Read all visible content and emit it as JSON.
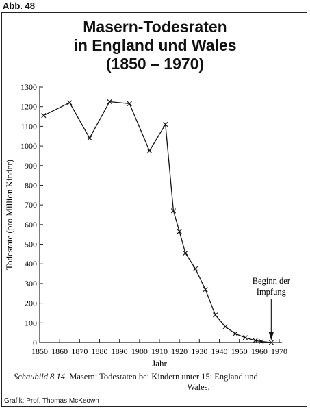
{
  "header": {
    "figure_label": "Abb. 48"
  },
  "title": {
    "line1": "Masern-Todesraten",
    "line2": "in England und Wales",
    "line3": "(1850 – 1970)"
  },
  "caption": {
    "label": "Schaubild 8.14.",
    "text": "Masern: Todesraten bei Kindern unter 15: England und",
    "text2": "Wales."
  },
  "credit": "Grafik: Prof. Thomas McKeown",
  "chart_data": {
    "type": "line",
    "xlabel": "Jahr",
    "ylabel": "Todesrate (pro Million Kinder)",
    "xlim": [
      1850,
      1970
    ],
    "ylim": [
      0,
      1300
    ],
    "xticks": [
      1850,
      1860,
      1870,
      1880,
      1890,
      1900,
      1910,
      1920,
      1930,
      1940,
      1950,
      1960,
      1970
    ],
    "yticks": [
      0,
      100,
      200,
      300,
      400,
      500,
      600,
      700,
      800,
      900,
      1000,
      1100,
      1200,
      1300
    ],
    "grid": false,
    "series": [
      {
        "x": [
          1852,
          1865,
          1875,
          1885,
          1895,
          1905,
          1913,
          1917,
          1920,
          1923,
          1928,
          1933,
          1938,
          1943,
          1948,
          1953,
          1958,
          1961,
          1966
        ],
        "y": [
          1155,
          1220,
          1040,
          1225,
          1215,
          975,
          1110,
          670,
          565,
          455,
          375,
          270,
          140,
          80,
          45,
          25,
          10,
          5,
          0
        ]
      }
    ],
    "annotations": [
      {
        "text_line1": "Beginn der",
        "text_line2": "Impfung",
        "x": 1966,
        "style": "arrow-down"
      }
    ]
  }
}
